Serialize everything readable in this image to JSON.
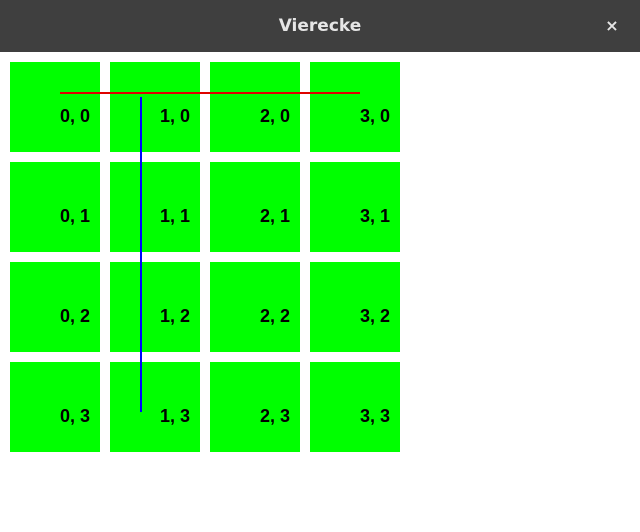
{
  "window": {
    "title": "Vierecke",
    "close_label": "×"
  },
  "grid": {
    "cell_color": "#00ff00",
    "cells": [
      {
        "label": "0, 0"
      },
      {
        "label": "1, 0"
      },
      {
        "label": "2, 0"
      },
      {
        "label": "3, 0"
      },
      {
        "label": "0, 1"
      },
      {
        "label": "1, 1"
      },
      {
        "label": "2, 1"
      },
      {
        "label": "3, 1"
      },
      {
        "label": "0, 2"
      },
      {
        "label": "1, 2"
      },
      {
        "label": "2, 2"
      },
      {
        "label": "3, 2"
      },
      {
        "label": "0, 3"
      },
      {
        "label": "1, 3"
      },
      {
        "label": "2, 3"
      },
      {
        "label": "3, 3"
      }
    ]
  },
  "lines": {
    "horizontal_color": "#e00000",
    "vertical_color": "#0000ff"
  }
}
